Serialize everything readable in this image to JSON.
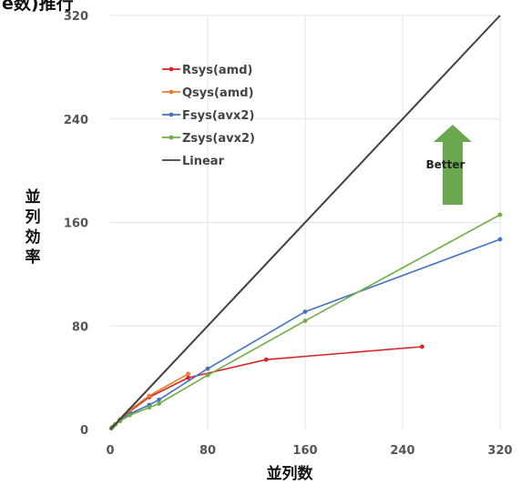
{
  "chart_data": {
    "type": "line",
    "title_fragment": "e数)推行",
    "xlabel": "並列数",
    "ylabel": "並列効率",
    "xlim": [
      0,
      320
    ],
    "ylim": [
      0,
      320
    ],
    "x_ticks": [
      0,
      80,
      160,
      240,
      320
    ],
    "y_ticks": [
      0,
      80,
      160,
      240,
      320
    ],
    "grid": true,
    "legend_position": "top-left",
    "annotation": "Better",
    "annotation_color": "#6aa84f",
    "series": [
      {
        "name": "Rsys(amd)",
        "color": "#d62728",
        "points": [
          [
            1,
            1
          ],
          [
            2,
            2
          ],
          [
            4,
            3.8
          ],
          [
            8,
            7.5
          ],
          [
            16,
            14
          ],
          [
            32,
            25
          ],
          [
            64,
            40
          ],
          [
            128,
            54
          ],
          [
            256,
            64
          ]
        ]
      },
      {
        "name": "Qsys(amd)",
        "color": "#ed7d31",
        "points": [
          [
            1,
            1
          ],
          [
            2,
            2
          ],
          [
            4,
            3.9
          ],
          [
            8,
            7.8
          ],
          [
            16,
            15
          ],
          [
            32,
            26
          ],
          [
            64,
            43
          ]
        ]
      },
      {
        "name": "Fsys(avx2)",
        "color": "#4472c4",
        "points": [
          [
            1,
            1
          ],
          [
            2,
            1.9
          ],
          [
            4,
            3.7
          ],
          [
            8,
            7
          ],
          [
            16,
            12
          ],
          [
            32,
            19
          ],
          [
            40,
            23
          ],
          [
            80,
            47
          ],
          [
            160,
            91
          ],
          [
            320,
            147
          ]
        ]
      },
      {
        "name": "Zsys(avx2)",
        "color": "#70ad47",
        "points": [
          [
            1,
            1
          ],
          [
            2,
            1.9
          ],
          [
            4,
            3.6
          ],
          [
            8,
            6.5
          ],
          [
            16,
            11
          ],
          [
            32,
            17
          ],
          [
            40,
            20
          ],
          [
            80,
            42
          ],
          [
            160,
            84
          ],
          [
            320,
            166
          ]
        ]
      },
      {
        "name": "Linear",
        "color": "#404040",
        "points": [
          [
            0,
            0
          ],
          [
            320,
            320
          ]
        ]
      }
    ]
  }
}
